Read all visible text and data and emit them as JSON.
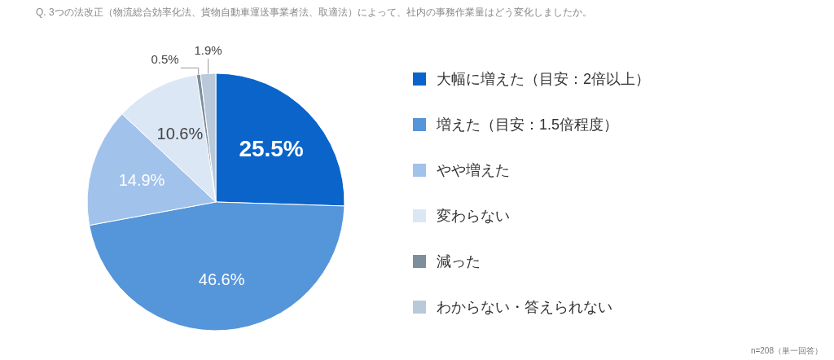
{
  "chart_data": {
    "type": "pie",
    "title": "Q. 3つの法改正（物流総合効率化法、貨物自動車運送事業者法、取適法）によって、社内の事務作業量はどう変化しましたか。",
    "categories": [
      "大幅に増えた（目安：2倍以上）",
      "増えた（目安：1.5倍程度）",
      "やや増えた",
      "変わらない",
      "減った",
      "わからない・答えられない"
    ],
    "values": [
      25.5,
      46.6,
      14.9,
      10.6,
      0.5,
      1.9
    ],
    "value_labels": [
      "25.5%",
      "46.6%",
      "14.9%",
      "10.6%",
      "0.5%",
      "1.9%"
    ],
    "colors": [
      "#0b64c9",
      "#5595da",
      "#a1c2ea",
      "#dbe7f5",
      "#7d8e9c",
      "#b9c9da"
    ],
    "legend": "right",
    "annotations": [
      "n=208（単一回答）"
    ]
  }
}
